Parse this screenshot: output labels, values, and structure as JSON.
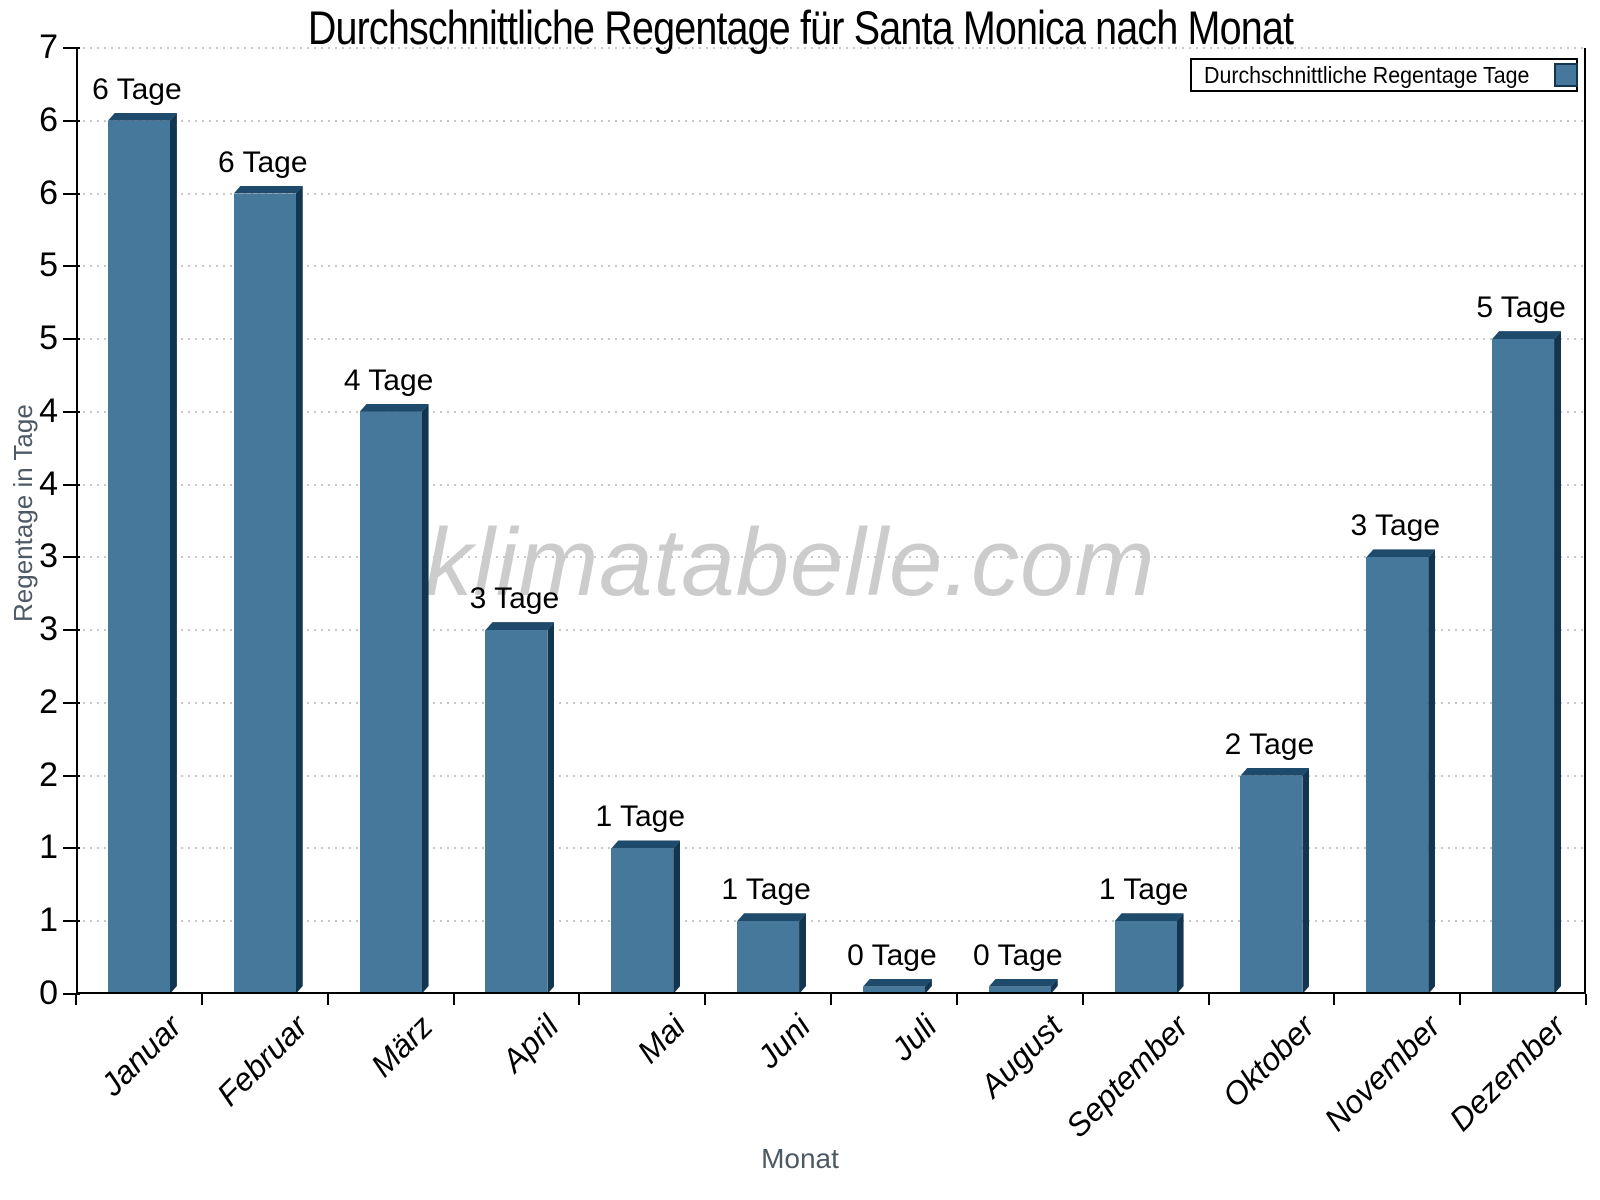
{
  "title": "Durchschnittliche Regentage für Santa Monica nach Monat",
  "watermark": "klimatabelle.com",
  "legend": {
    "label": "Durchschnittliche Regentage Tage"
  },
  "x_axis_label": "Monat",
  "y_axis_label": "Regentage in Tage",
  "chart_data": {
    "type": "bar",
    "title": "Durchschnittliche Regentage für Santa Monica nach Monat",
    "categories": [
      "Januar",
      "Februar",
      "März",
      "April",
      "Mai",
      "Juni",
      "Juli",
      "August",
      "September",
      "Oktober",
      "November",
      "Dezember"
    ],
    "series": [
      {
        "name": "Durchschnittliche Regentage Tage",
        "values": [
          6,
          5.5,
          4,
          2.5,
          1,
          0.5,
          0.05,
          0.05,
          0.5,
          1.5,
          3,
          4.5
        ]
      }
    ],
    "bar_labels": [
      "6 Tage",
      "6 Tage",
      "4 Tage",
      "3 Tage",
      "1 Tage",
      "1 Tage",
      "0 Tage",
      "0 Tage",
      "1 Tage",
      "2 Tage",
      "3 Tage",
      "5 Tage"
    ],
    "xlabel": "Monat",
    "ylabel": "Regentage in Tage",
    "ylim": [
      0,
      6.5
    ],
    "y_tick_step": 0.5,
    "y_tick_labels_bottom_to_top": [
      "0",
      "1",
      "1",
      "2",
      "2",
      "3",
      "3",
      "4",
      "4",
      "5",
      "5",
      "6",
      "6",
      "7"
    ],
    "grid": "horizontal dotted",
    "legend_position": "top-right"
  },
  "colors": {
    "bar_face": "#45789B",
    "bar_top": "#1E4A6B",
    "bar_side": "#12364F",
    "grid": "#c8c8c8",
    "axis": "#000000",
    "muted_text": "#4D5964",
    "watermark": "#cccccc"
  }
}
